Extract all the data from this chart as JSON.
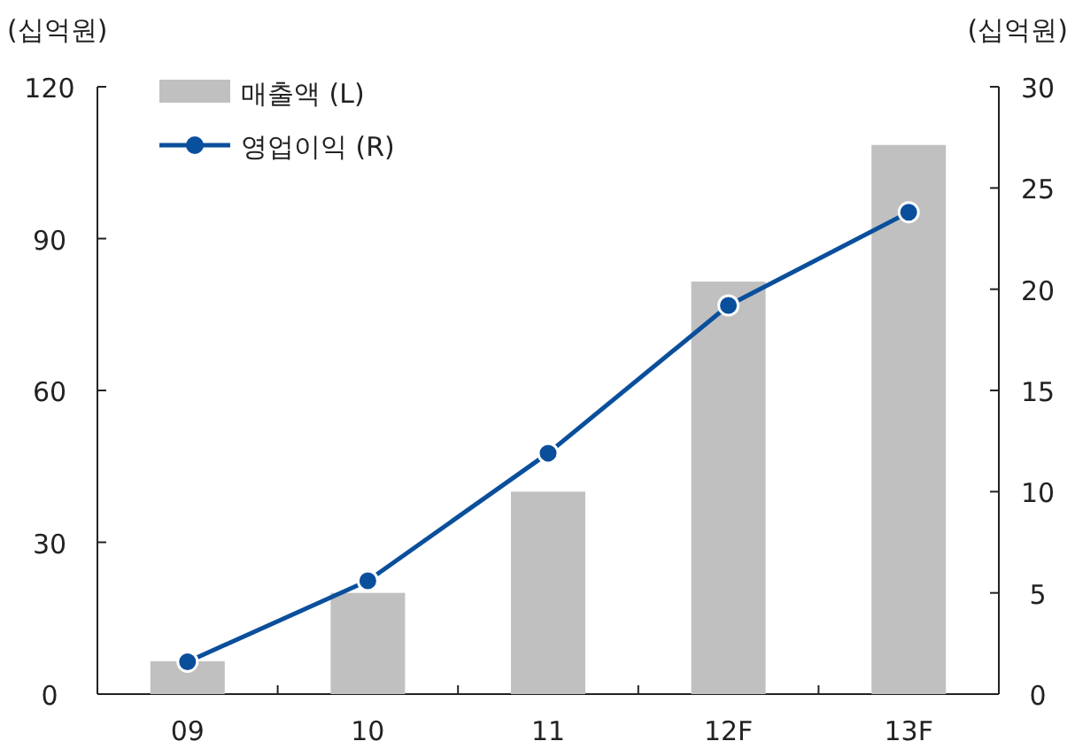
{
  "chart_data": {
    "type": "bar",
    "ylabel": "(십억원)",
    "y2label": "(십억원)",
    "categories": [
      "09",
      "10",
      "11",
      "12F",
      "13F"
    ],
    "series": [
      {
        "name": "매출액 (L)",
        "color": "#c0c0c0",
        "values": [
          6.5,
          20,
          40,
          81.5,
          108.5
        ]
      },
      {
        "name": "영업이익 (R)",
        "type": "line",
        "axis": "y2",
        "color": "#0a4f9c",
        "marker": "circle",
        "values": [
          1.6,
          5.6,
          11.9,
          19.2,
          23.8
        ]
      }
    ],
    "ylim": [
      0,
      120
    ],
    "yticks": [
      0,
      30,
      60,
      90,
      120
    ],
    "y2lim": [
      0,
      30
    ],
    "y2ticks": [
      0,
      5,
      10,
      15,
      20,
      25,
      30
    ],
    "legend": "top left",
    "grid": false
  }
}
